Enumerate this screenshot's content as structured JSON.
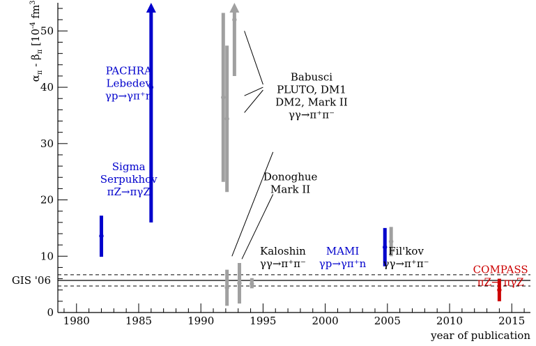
{
  "chart_data": {
    "type": "scatter",
    "xlabel": "year of publication",
    "ylabel": "α_π - β_π [10^-4 fm^3]",
    "xlim": [
      1978.5,
      2016.5
    ],
    "ylim": [
      0,
      55
    ],
    "x_ticks": [
      1980,
      1985,
      1990,
      1995,
      2000,
      2005,
      2010,
      2015
    ],
    "y_ticks": [
      0,
      10,
      20,
      30,
      40,
      50
    ],
    "grid": false,
    "colors": {
      "blue": "#0000cc",
      "gray": "#a0a0a0",
      "red": "#cc0000",
      "black": "#000000"
    },
    "reference": {
      "label": "GIS '06",
      "central": 5.7,
      "band": [
        4.7,
        6.7
      ]
    },
    "series": [
      {
        "color": "blue",
        "x": 1982.0,
        "y": 13.6,
        "y_low": 9.9,
        "y_high": 17.2
      },
      {
        "color": "blue",
        "x": 1986.0,
        "y": 40.0,
        "y_low": 16.0,
        "y_high": 55.0,
        "arrow": true
      },
      {
        "color": "gray",
        "x": 1991.8,
        "y": 38.2,
        "y_low": 23.2,
        "y_high": 53.2
      },
      {
        "color": "gray",
        "x": 1992.1,
        "y": 34.4,
        "y_low": 21.4,
        "y_high": 47.4
      },
      {
        "color": "gray",
        "x": 1992.7,
        "y": 52.0,
        "y_low": 42.0,
        "y_high": 55.0,
        "arrow": true
      },
      {
        "color": "gray",
        "x": 1992.1,
        "y": 4.4,
        "y_low": 1.2,
        "y_high": 7.6
      },
      {
        "color": "gray",
        "x": 1993.1,
        "y": 5.2,
        "y_low": 1.6,
        "y_high": 8.8
      },
      {
        "color": "gray",
        "x": 1994.1,
        "y": 5.1,
        "y_low": 4.3,
        "y_high": 6.1
      },
      {
        "color": "blue",
        "x": 2004.8,
        "y": 11.6,
        "y_low": 8.2,
        "y_high": 15.0
      },
      {
        "color": "gray",
        "x": 2005.3,
        "y": 12.6,
        "y_low": 10.0,
        "y_high": 15.2
      },
      {
        "color": "red",
        "x": 2014.0,
        "y": 4.0,
        "y_low": 2.0,
        "y_high": 6.0
      }
    ],
    "annotations": [
      {
        "id": "pachra",
        "color": "blue",
        "x": 1984.2,
        "y": 42.3,
        "lines": [
          "PACHRA",
          "Lebedev",
          "γp→γπ⁺n"
        ]
      },
      {
        "id": "sigma",
        "color": "blue",
        "x": 1984.2,
        "y": 25.3,
        "lines": [
          "Sigma",
          "Serpukhov",
          "πZ→πγZ"
        ]
      },
      {
        "id": "babusci",
        "color": "black",
        "x": 1998.9,
        "y": 41.2,
        "lines": [
          "Babusci",
          "PLUTO, DM1",
          "DM2, Mark II",
          "γγ→π⁺π⁻"
        ]
      },
      {
        "id": "donoghue",
        "color": "black",
        "x": 1997.2,
        "y": 23.5,
        "lines": [
          "Donoghue",
          "Mark II"
        ]
      },
      {
        "id": "kaloshin",
        "color": "black",
        "x": 1996.6,
        "y": 10.3,
        "lines": [
          "Kaloshin",
          "γγ→π⁺π⁻"
        ]
      },
      {
        "id": "mami",
        "color": "blue",
        "x": 2001.4,
        "y": 10.3,
        "lines": [
          "MAMI",
          "γp→γπ⁺n"
        ]
      },
      {
        "id": "filkov",
        "color": "black",
        "x": 2006.5,
        "y": 10.3,
        "lines": [
          "Fil'kov",
          "γγ→π⁺π⁻"
        ]
      },
      {
        "id": "compass",
        "color": "red",
        "x": 2014.1,
        "y": 7.0,
        "lines": [
          "COMPASS",
          "πZ→ πγZ"
        ]
      }
    ],
    "connector_lines": [
      {
        "from": [
          1993.5,
          50.0
        ],
        "to": [
          1995.0,
          40.5
        ]
      },
      {
        "from": [
          1993.5,
          38.5
        ],
        "to": [
          1995.0,
          40.0
        ]
      },
      {
        "from": [
          1993.5,
          35.5
        ],
        "to": [
          1995.0,
          39.5
        ]
      },
      {
        "from": [
          1992.5,
          10.0
        ],
        "to": [
          1995.8,
          28.5
        ]
      },
      {
        "from": [
          1993.3,
          9.5
        ],
        "to": [
          1995.8,
          21.0
        ]
      }
    ]
  }
}
